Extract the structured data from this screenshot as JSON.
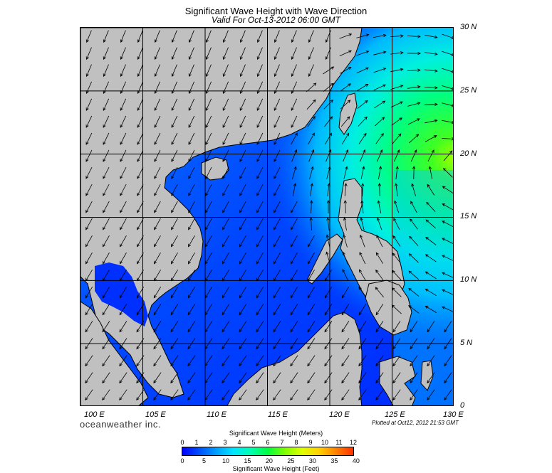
{
  "header": {
    "title": "Significant Wave Height with Wave Direction",
    "subtitle": "Valid For Oct-13-2012 06:00 GMT"
  },
  "axes": {
    "latitude_labels": [
      "30 N",
      "25 N",
      "20 N",
      "15 N",
      "10 N",
      "5 N",
      "0"
    ],
    "longitude_labels": [
      "100 E",
      "105 E",
      "110 E",
      "115 E",
      "120 E",
      "125 E",
      "130 E"
    ]
  },
  "footer": {
    "brand": "oceanweather inc.",
    "plotted": "Plotted at Oct12, 2012 21:53 GMT"
  },
  "legend": {
    "title_meters": "Significant Wave Height (Meters)",
    "title_feet": "Significant Wave Height (Feet)",
    "meter_ticks": [
      "0",
      "1",
      "2",
      "3",
      "4",
      "5",
      "6",
      "7",
      "8",
      "9",
      "10",
      "11",
      "12"
    ],
    "feet_ticks": [
      "0",
      "5",
      "10",
      "15",
      "20",
      "25",
      "30",
      "35",
      "40"
    ],
    "colors": [
      "#0000ff",
      "#0050ff",
      "#00a0ff",
      "#00e6ff",
      "#00ffb0",
      "#00ff40",
      "#80ff00",
      "#e0ff00",
      "#ffd000",
      "#ff8000",
      "#ff3000"
    ]
  },
  "colors": {
    "land": "#c0c0c0",
    "grid": "#000000",
    "sea_low": "#0040ff",
    "sea_high": "#20ff20"
  }
}
